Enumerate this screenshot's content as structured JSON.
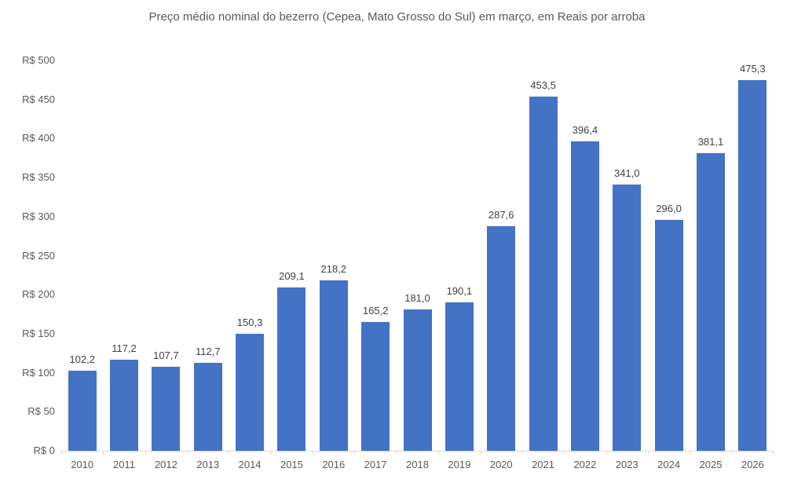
{
  "chart_data": {
    "type": "bar",
    "title": "Preço médio nominal do bezerro (Cepea, Mato Grosso do Sul) em março, em Reais por arroba",
    "xlabel": "",
    "ylabel": "",
    "categories": [
      "2010",
      "2011",
      "2012",
      "2013",
      "2014",
      "2015",
      "2016",
      "2017",
      "2018",
      "2019",
      "2020",
      "2021",
      "2022",
      "2023",
      "2024",
      "2025",
      "2026"
    ],
    "values": [
      102.2,
      117.2,
      107.7,
      112.7,
      150.3,
      209.1,
      218.2,
      165.2,
      181.0,
      190.1,
      287.6,
      453.5,
      396.4,
      341.0,
      296.0,
      381.1,
      475.3
    ],
    "value_labels": [
      "102,2",
      "117,2",
      "107,7",
      "112,7",
      "150,3",
      "209,1",
      "218,2",
      "165,2",
      "181,0",
      "190,1",
      "287,6",
      "453,5",
      "396,4",
      "341,0",
      "296,0",
      "381,1",
      "475,3"
    ],
    "ylim": [
      0,
      500
    ],
    "ytick_step": 50,
    "ytick_labels": [
      "R$ 0",
      "R$ 50",
      "R$ 100",
      "R$ 150",
      "R$ 200",
      "R$ 250",
      "R$ 300",
      "R$ 350",
      "R$ 400",
      "R$ 450",
      "R$ 500"
    ],
    "grid": false,
    "legend": false,
    "colors": {
      "bar": "#4472C4",
      "title_text": "#595959",
      "axis_text": "#595959",
      "value_text": "#404040",
      "axis_line": "#d9d9d9",
      "background": "#ffffff"
    }
  }
}
